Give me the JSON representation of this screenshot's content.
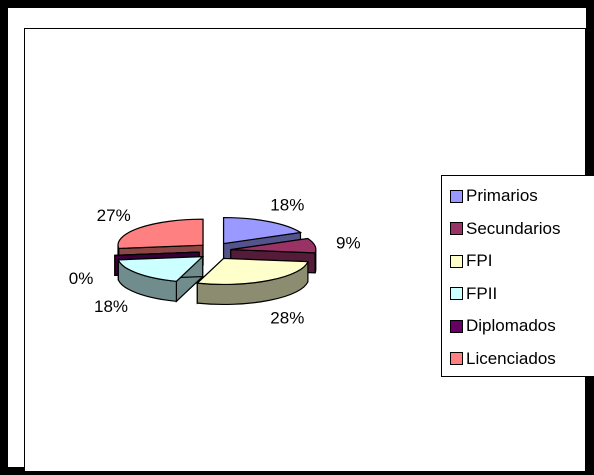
{
  "chart_data": {
    "type": "pie",
    "style": "3d-exploded",
    "categories": [
      "Primarios",
      "Secundarios",
      "FPI",
      "FPII",
      "Diplomados",
      "Licenciados"
    ],
    "values": [
      18,
      9,
      28,
      18,
      0,
      27
    ],
    "labels": [
      "18%",
      "9%",
      "28%",
      "18%",
      "0%",
      "27%"
    ],
    "colors": [
      "#9999ff",
      "#993366",
      "#ffffcc",
      "#ccffff",
      "#660066",
      "#ff8080"
    ],
    "legend_position": "right"
  }
}
